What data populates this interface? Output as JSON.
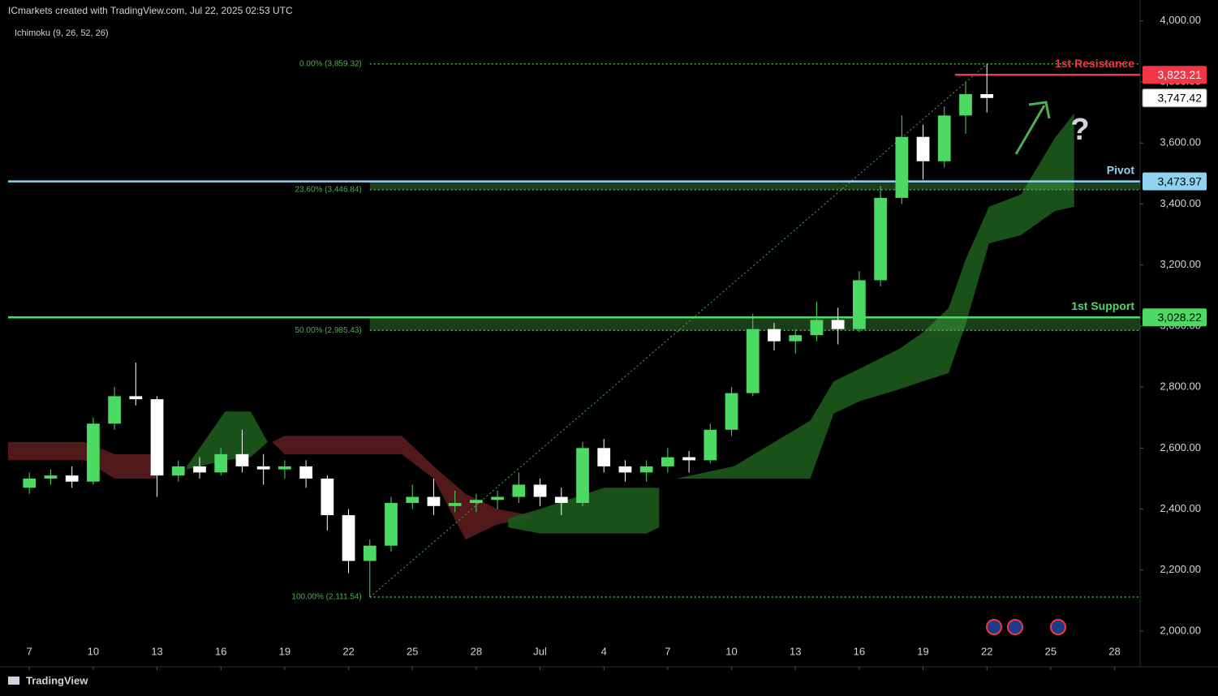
{
  "header": {
    "title": "ICmarkets created with TradingView.com, Jul 22, 2025 02:53 UTC",
    "indicator": "Ichimoku (9, 26, 52, 26)",
    "footer": "TradingView"
  },
  "chart_data": {
    "type": "candlestick",
    "annotation": "?",
    "xlim": [
      -1,
      52.2
    ],
    "ylim": [
      1883,
      4042
    ],
    "xticks": [
      {
        "value": 0,
        "label": "7"
      },
      {
        "value": 3,
        "label": "10"
      },
      {
        "value": 6,
        "label": "13"
      },
      {
        "value": 9,
        "label": "16"
      },
      {
        "value": 12,
        "label": "19"
      },
      {
        "value": 15,
        "label": "22"
      },
      {
        "value": 18,
        "label": "25"
      },
      {
        "value": 21,
        "label": "28"
      },
      {
        "value": 24,
        "label": "Jul"
      },
      {
        "value": 27,
        "label": "4"
      },
      {
        "value": 30,
        "label": "7"
      },
      {
        "value": 33,
        "label": "10"
      },
      {
        "value": 36,
        "label": "13"
      },
      {
        "value": 39,
        "label": "16"
      },
      {
        "value": 42,
        "label": "19"
      },
      {
        "value": 45,
        "label": "22"
      },
      {
        "value": 48,
        "label": "25"
      },
      {
        "value": 51,
        "label": "28"
      }
    ],
    "yticks": [
      {
        "value": 2000,
        "label": "2,000.00"
      },
      {
        "value": 2200,
        "label": "2,200.00"
      },
      {
        "value": 2400,
        "label": "2,400.00"
      },
      {
        "value": 2600,
        "label": "2,600.00"
      },
      {
        "value": 2800,
        "label": "2,800.00"
      },
      {
        "value": 3000,
        "label": "3,000.00"
      },
      {
        "value": 3200,
        "label": "3,200.00"
      },
      {
        "value": 3400,
        "label": "3,400.00"
      },
      {
        "value": 3600,
        "label": "3,600.00"
      },
      {
        "value": 3800,
        "label": "3,800.00"
      },
      {
        "value": 4000,
        "label": "4,000.00"
      }
    ],
    "up_color": "#4cd964",
    "down_color": "#ffffff",
    "ohlc": {
      "x": [
        0,
        1,
        2,
        3,
        4,
        5,
        6,
        7,
        8,
        9,
        10,
        11,
        12,
        13,
        14,
        15,
        16,
        17,
        18,
        19,
        20,
        21,
        22,
        23,
        24,
        25,
        26,
        27,
        28,
        29,
        30,
        31,
        32,
        33,
        34,
        35,
        36,
        37,
        38,
        39,
        40,
        41,
        42,
        43,
        44,
        45
      ],
      "open": [
        2470,
        2500,
        2510,
        2490,
        2680,
        2770,
        2760,
        2510,
        2540,
        2520,
        2580,
        2540,
        2530,
        2540,
        2500,
        2380,
        2230,
        2280,
        2420,
        2440,
        2410,
        2420,
        2430,
        2440,
        2480,
        2440,
        2420,
        2600,
        2540,
        2520,
        2540,
        2570,
        2560,
        2660,
        2780,
        2990,
        2950,
        2970,
        3020,
        2990,
        3150,
        3420,
        3620,
        3540,
        3690,
        3760
      ],
      "high": [
        2520,
        2530,
        2540,
        2700,
        2800,
        2880,
        2770,
        2560,
        2570,
        2600,
        2660,
        2580,
        2560,
        2560,
        2510,
        2400,
        2300,
        2440,
        2480,
        2500,
        2460,
        2450,
        2460,
        2520,
        2500,
        2470,
        2620,
        2630,
        2560,
        2560,
        2600,
        2590,
        2680,
        2800,
        3040,
        3010,
        2990,
        3080,
        3060,
        3180,
        3460,
        3690,
        3660,
        3720,
        3800,
        3859
      ],
      "low": [
        2450,
        2480,
        2470,
        2480,
        2660,
        2740,
        2440,
        2490,
        2500,
        2510,
        2520,
        2480,
        2500,
        2470,
        2330,
        2190,
        2111,
        2260,
        2400,
        2380,
        2390,
        2390,
        2400,
        2420,
        2410,
        2380,
        2410,
        2520,
        2490,
        2490,
        2520,
        2520,
        2550,
        2640,
        2770,
        2920,
        2910,
        2950,
        2940,
        2980,
        3130,
        3400,
        3480,
        3520,
        3630,
        3700
      ],
      "close": [
        2500,
        2510,
        2490,
        2680,
        2770,
        2760,
        2510,
        2540,
        2520,
        2580,
        2540,
        2530,
        2540,
        2500,
        2380,
        2230,
        2280,
        2420,
        2440,
        2410,
        2420,
        2430,
        2440,
        2480,
        2440,
        2420,
        2600,
        2540,
        2520,
        2540,
        2570,
        2560,
        2660,
        2780,
        2990,
        2950,
        2970,
        3020,
        2990,
        3150,
        3420,
        3620,
        3540,
        3690,
        3760,
        3747.42
      ]
    },
    "ichimoku_cloud": [
      {
        "color": "#5a1c1c",
        "x": [
          -1,
          2.6,
          4,
          6
        ],
        "upper": [
          2620,
          2620,
          2580,
          2580
        ],
        "lower": [
          2560,
          2560,
          2500,
          2500
        ]
      },
      {
        "color": "#1c5a1c",
        "x": [
          7.4,
          9.2,
          10.4,
          11.2
        ],
        "upper": [
          2540,
          2720,
          2720,
          2620
        ],
        "lower": [
          2530,
          2560,
          2570,
          2620
        ]
      },
      {
        "color": "#5a1c1c",
        "x": [
          11.4,
          12,
          17.5,
          19,
          20.5,
          22,
          23.5
        ],
        "upper": [
          2620,
          2640,
          2640,
          2540,
          2450,
          2400,
          2380
        ],
        "lower": [
          2620,
          2580,
          2580,
          2500,
          2300,
          2350,
          2370
        ]
      },
      {
        "color": "#1c5a1c",
        "x": [
          22.5,
          24,
          27,
          29,
          29.6
        ],
        "upper": [
          2370,
          2400,
          2470,
          2470,
          2470
        ],
        "lower": [
          2340,
          2320,
          2320,
          2320,
          2340
        ]
      },
      {
        "color": "#1c5a1c",
        "x": [
          30.4,
          33.1,
          36.7,
          37.8,
          39.0,
          40.9,
          42.0,
          43.2,
          44.0,
          45.1,
          46.6,
          48.2,
          49.1
        ],
        "upper": [
          2500,
          2540,
          2690,
          2819,
          2859,
          2926,
          2979,
          3059,
          3218,
          3391,
          3431,
          3617,
          3697
        ],
        "lower": [
          2500,
          2500,
          2500,
          2713,
          2753,
          2793,
          2819,
          2846,
          3005,
          3271,
          3298,
          3377,
          3391
        ]
      }
    ],
    "fib_color": "#4caf50",
    "fib_levels": [
      {
        "value": 3859.32,
        "label": "0.00% (3,859.32)"
      },
      {
        "value": 3446.84,
        "label": "23.60% (3,446.84)"
      },
      {
        "value": 2985.43,
        "label": "50.00% (2,985.43)"
      },
      {
        "value": 2111.54,
        "label": "100.00% (2,111.54)"
      }
    ],
    "levels": [
      {
        "name": "1st Resistance",
        "value": 3823.21,
        "label": "3,823.21",
        "color": "#f23645",
        "x_start": 43.5
      },
      {
        "name": "Pivot",
        "value": 3473.97,
        "label": "3,473.97",
        "color": "#8fd3f0"
      },
      {
        "name": "1st Support",
        "value": 3028.22,
        "label": "3,028.22",
        "color": "#4cd964"
      }
    ],
    "last_price": {
      "value": 3747.42,
      "label": "3,747.42"
    }
  }
}
